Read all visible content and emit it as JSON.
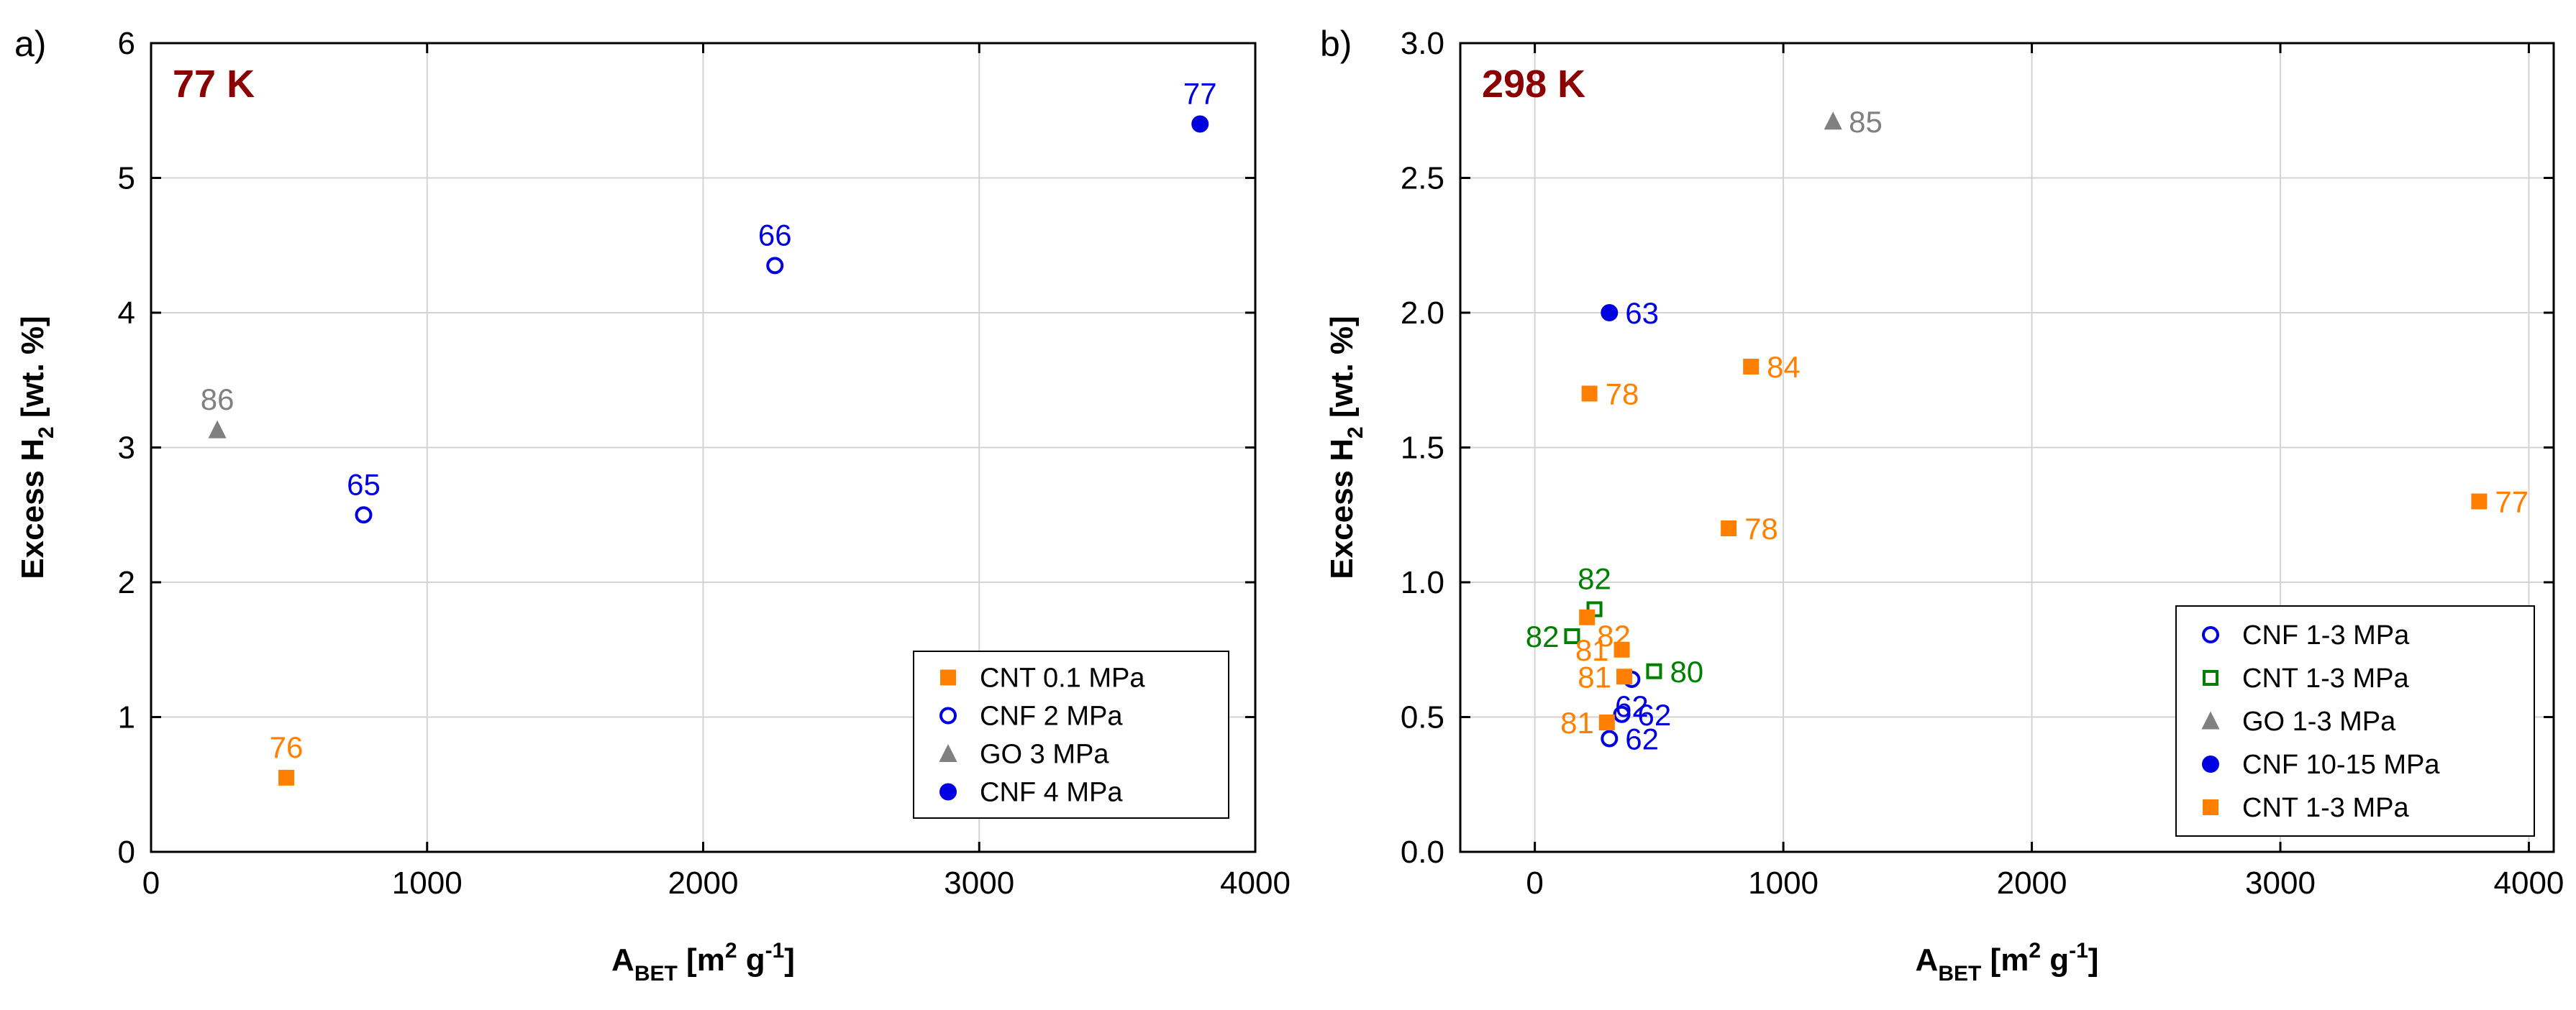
{
  "colors": {
    "orange": "#ff8000",
    "blue": "#0000e0",
    "gray": "#808080",
    "green": "#008000",
    "temp": "#8b0000"
  },
  "chart_data": [
    {
      "panel_label": "a)",
      "type": "scatter",
      "annotation": "77 K",
      "xlabel": {
        "main": "A",
        "sub": "BET",
        "rest1": " [m",
        "sup": "2",
        "rest2": " g",
        "sup2": "-1",
        "rest3": "]"
      },
      "ylabel": {
        "main": "Excess H",
        "sub": "2",
        "rest": " [wt. %]"
      },
      "xlim": [
        0,
        4000
      ],
      "ylim": [
        0,
        6
      ],
      "xticks": [
        0,
        1000,
        2000,
        3000,
        4000
      ],
      "yticks": [
        0,
        1,
        2,
        3,
        4,
        5,
        6
      ],
      "legend_position": "bottom-right",
      "series": [
        {
          "name": "CNT 0.1 MPa",
          "marker": "square-filled",
          "color": "#ff8000",
          "points": [
            {
              "x": 490,
              "y": 0.55,
              "label": "76",
              "label_side": "above"
            }
          ]
        },
        {
          "name": "CNF 2 MPa",
          "marker": "circle-open",
          "color": "#0000e0",
          "points": [
            {
              "x": 770,
              "y": 2.5,
              "label": "65",
              "label_side": "above"
            },
            {
              "x": 2260,
              "y": 4.35,
              "label": "66",
              "label_side": "above"
            }
          ]
        },
        {
          "name": "GO 3 MPa",
          "marker": "triangle-filled",
          "color": "#808080",
          "points": [
            {
              "x": 240,
              "y": 3.13,
              "label": "86",
              "label_side": "above"
            }
          ]
        },
        {
          "name": "CNF 4 MPa",
          "marker": "circle-filled",
          "color": "#0000e0",
          "points": [
            {
              "x": 3800,
              "y": 5.4,
              "label": "77",
              "label_side": "above"
            }
          ]
        }
      ]
    },
    {
      "panel_label": "b)",
      "type": "scatter",
      "annotation": "298 K",
      "xlabel": {
        "main": "A",
        "sub": "BET",
        "rest1": " [m",
        "sup": "2",
        "rest2": " g",
        "sup2": "-1",
        "rest3": "]"
      },
      "ylabel": {
        "main": "Excess H",
        "sub": "2",
        "rest": " [wt. %]"
      },
      "xlim": [
        -300,
        4100
      ],
      "ylim": [
        0,
        3.0
      ],
      "xticks": [
        0,
        1000,
        2000,
        3000,
        4000
      ],
      "yticks": [
        0.0,
        0.5,
        1.0,
        1.5,
        2.0,
        2.5,
        3.0
      ],
      "ytick_labels": [
        "0.0",
        "0.5",
        "1.0",
        "1.5",
        "2.0",
        "2.5",
        "3.0"
      ],
      "legend_position": "bottom-right",
      "series": [
        {
          "name": "CNF 1-3 MPa",
          "marker": "circle-open",
          "color": "#0000e0",
          "points": [
            {
              "x": 350,
              "y": 0.51,
              "label": "62",
              "label_side": "right"
            },
            {
              "x": 300,
              "y": 0.42,
              "label": "62",
              "label_side": "right"
            },
            {
              "x": 390,
              "y": 0.64,
              "label": "62",
              "label_side": "below"
            }
          ]
        },
        {
          "name": "CNT 1-3 MPa",
          "marker": "square-open",
          "color": "#008000",
          "points": [
            {
              "x": 240,
              "y": 0.9,
              "label": "82",
              "label_side": "above"
            },
            {
              "x": 150,
              "y": 0.8,
              "label": "82",
              "label_side": "left"
            },
            {
              "x": 480,
              "y": 0.67,
              "label": "80",
              "label_side": "right"
            }
          ]
        },
        {
          "name": "GO 1-3 MPa",
          "marker": "triangle-filled",
          "color": "#808080",
          "points": [
            {
              "x": 1200,
              "y": 2.71,
              "label": "85",
              "label_side": "right"
            }
          ]
        },
        {
          "name": "CNF 10-15 MPa",
          "marker": "circle-filled",
          "color": "#0000e0",
          "points": [
            {
              "x": 300,
              "y": 2.0,
              "label": "63",
              "label_side": "right"
            }
          ]
        },
        {
          "name": "CNT 1-3 MPa",
          "marker": "square-filled",
          "color": "#ff8000",
          "points": [
            {
              "x": 220,
              "y": 1.7,
              "label": "78",
              "label_side": "right"
            },
            {
              "x": 870,
              "y": 1.8,
              "label": "84",
              "label_side": "right"
            },
            {
              "x": 780,
              "y": 1.2,
              "label": "78",
              "label_side": "right"
            },
            {
              "x": 3800,
              "y": 1.3,
              "label": "77",
              "label_side": "right"
            },
            {
              "x": 210,
              "y": 0.87,
              "label": "82",
              "label_side": "below-right"
            },
            {
              "x": 350,
              "y": 0.75,
              "label": "81",
              "label_side": "left"
            },
            {
              "x": 360,
              "y": 0.65,
              "label": "81",
              "label_side": "left"
            },
            {
              "x": 290,
              "y": 0.48,
              "label": "81",
              "label_side": "left"
            }
          ]
        }
      ]
    }
  ]
}
